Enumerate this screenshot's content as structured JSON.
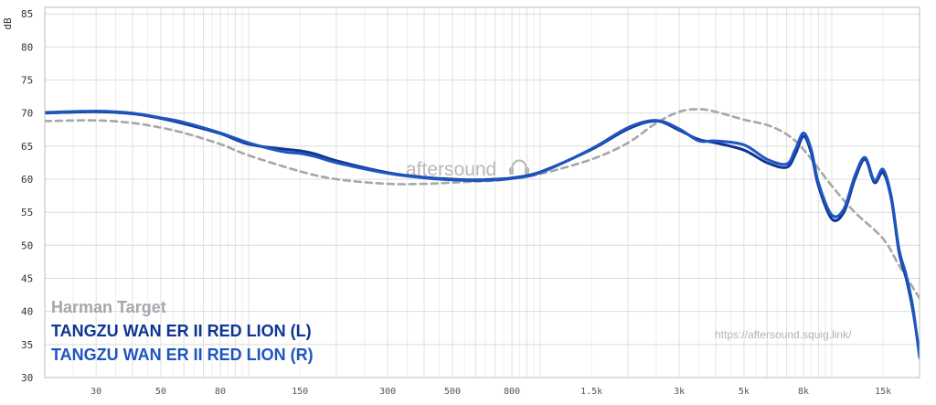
{
  "chart_data": {
    "type": "line",
    "ylabel": "dB",
    "xscale": "log",
    "xlim": [
      20,
      20000
    ],
    "ylim": [
      30,
      86
    ],
    "y_ticks": [
      30,
      35,
      40,
      45,
      50,
      55,
      60,
      65,
      70,
      75,
      80,
      85
    ],
    "x_ticks": [
      {
        "value": 30,
        "label": "30"
      },
      {
        "value": 50,
        "label": "50"
      },
      {
        "value": 80,
        "label": "80"
      },
      {
        "value": 150,
        "label": "150"
      },
      {
        "value": 300,
        "label": "300"
      },
      {
        "value": 500,
        "label": "500"
      },
      {
        "value": 800,
        "label": "800"
      },
      {
        "value": 1500,
        "label": "1.5k"
      },
      {
        "value": 3000,
        "label": "3k"
      },
      {
        "value": 5000,
        "label": "5k"
      },
      {
        "value": 8000,
        "label": "8k"
      },
      {
        "value": 15000,
        "label": "15k"
      }
    ],
    "grid": true,
    "legend_position": "bottom-left",
    "watermark": "aftersound",
    "url": "https://aftersound.squig.link/",
    "series": [
      {
        "name": "Harman Target",
        "color": "#a6a6ad",
        "dashed": true,
        "x": [
          20,
          30,
          40,
          50,
          60,
          80,
          100,
          150,
          200,
          300,
          400,
          500,
          700,
          800,
          1000,
          1500,
          2000,
          2500,
          3000,
          3500,
          4000,
          5000,
          6000,
          7000,
          8000,
          10000,
          12000,
          15000,
          17000,
          20000
        ],
        "y": [
          68.8,
          68.9,
          68.5,
          67.8,
          67.0,
          65.3,
          63.6,
          61.2,
          60.0,
          59.3,
          59.3,
          59.5,
          59.8,
          60.1,
          60.8,
          63.0,
          65.5,
          68.5,
          70.2,
          70.6,
          70.2,
          69.0,
          68.2,
          66.8,
          64.5,
          59.0,
          55.0,
          51.0,
          47.0,
          42.0
        ]
      },
      {
        "name": "TANGZU WAN ER II RED LION (L)",
        "color": "#0d3593",
        "dashed": false,
        "x": [
          20,
          30,
          40,
          50,
          60,
          80,
          100,
          130,
          150,
          170,
          200,
          300,
          400,
          500,
          600,
          700,
          800,
          1000,
          1500,
          2000,
          2500,
          3000,
          3500,
          4000,
          5000,
          6000,
          7000,
          7500,
          8000,
          8500,
          9000,
          10000,
          11000,
          12000,
          13000,
          14000,
          15000,
          16000,
          17000,
          18000,
          19000,
          20000
        ],
        "y": [
          70.0,
          70.2,
          69.9,
          69.2,
          68.4,
          66.9,
          65.3,
          64.6,
          64.3,
          63.8,
          62.8,
          61.0,
          60.3,
          60.0,
          59.9,
          60.0,
          60.2,
          61.1,
          64.5,
          67.6,
          68.8,
          67.4,
          66.0,
          65.5,
          64.4,
          62.5,
          61.8,
          63.8,
          66.5,
          64.0,
          59.0,
          54.0,
          55.0,
          60.0,
          63.0,
          59.5,
          61.0,
          57.0,
          49.0,
          45.0,
          40.0,
          33.5
        ]
      },
      {
        "name": "TANGZU WAN ER II RED LION (R)",
        "color": "#1e55c0",
        "dashed": false,
        "x": [
          20,
          30,
          40,
          50,
          60,
          80,
          100,
          130,
          150,
          170,
          200,
          300,
          400,
          500,
          600,
          700,
          800,
          1000,
          1500,
          2000,
          2500,
          3000,
          3500,
          4000,
          5000,
          6000,
          7000,
          7500,
          8000,
          8500,
          9000,
          10000,
          11000,
          12000,
          13000,
          14000,
          15000,
          16000,
          17000,
          18000,
          19000,
          20000
        ],
        "y": [
          70.1,
          70.3,
          70.0,
          69.3,
          68.6,
          67.0,
          65.5,
          64.2,
          63.9,
          63.4,
          62.5,
          60.9,
          60.2,
          59.9,
          59.8,
          59.9,
          60.1,
          61.0,
          64.6,
          67.8,
          68.9,
          67.6,
          65.8,
          65.8,
          65.2,
          63.0,
          62.3,
          64.5,
          67.0,
          64.5,
          59.5,
          54.6,
          55.5,
          60.5,
          63.3,
          59.8,
          61.5,
          57.4,
          49.5,
          45.5,
          40.5,
          33.0
        ]
      }
    ]
  }
}
